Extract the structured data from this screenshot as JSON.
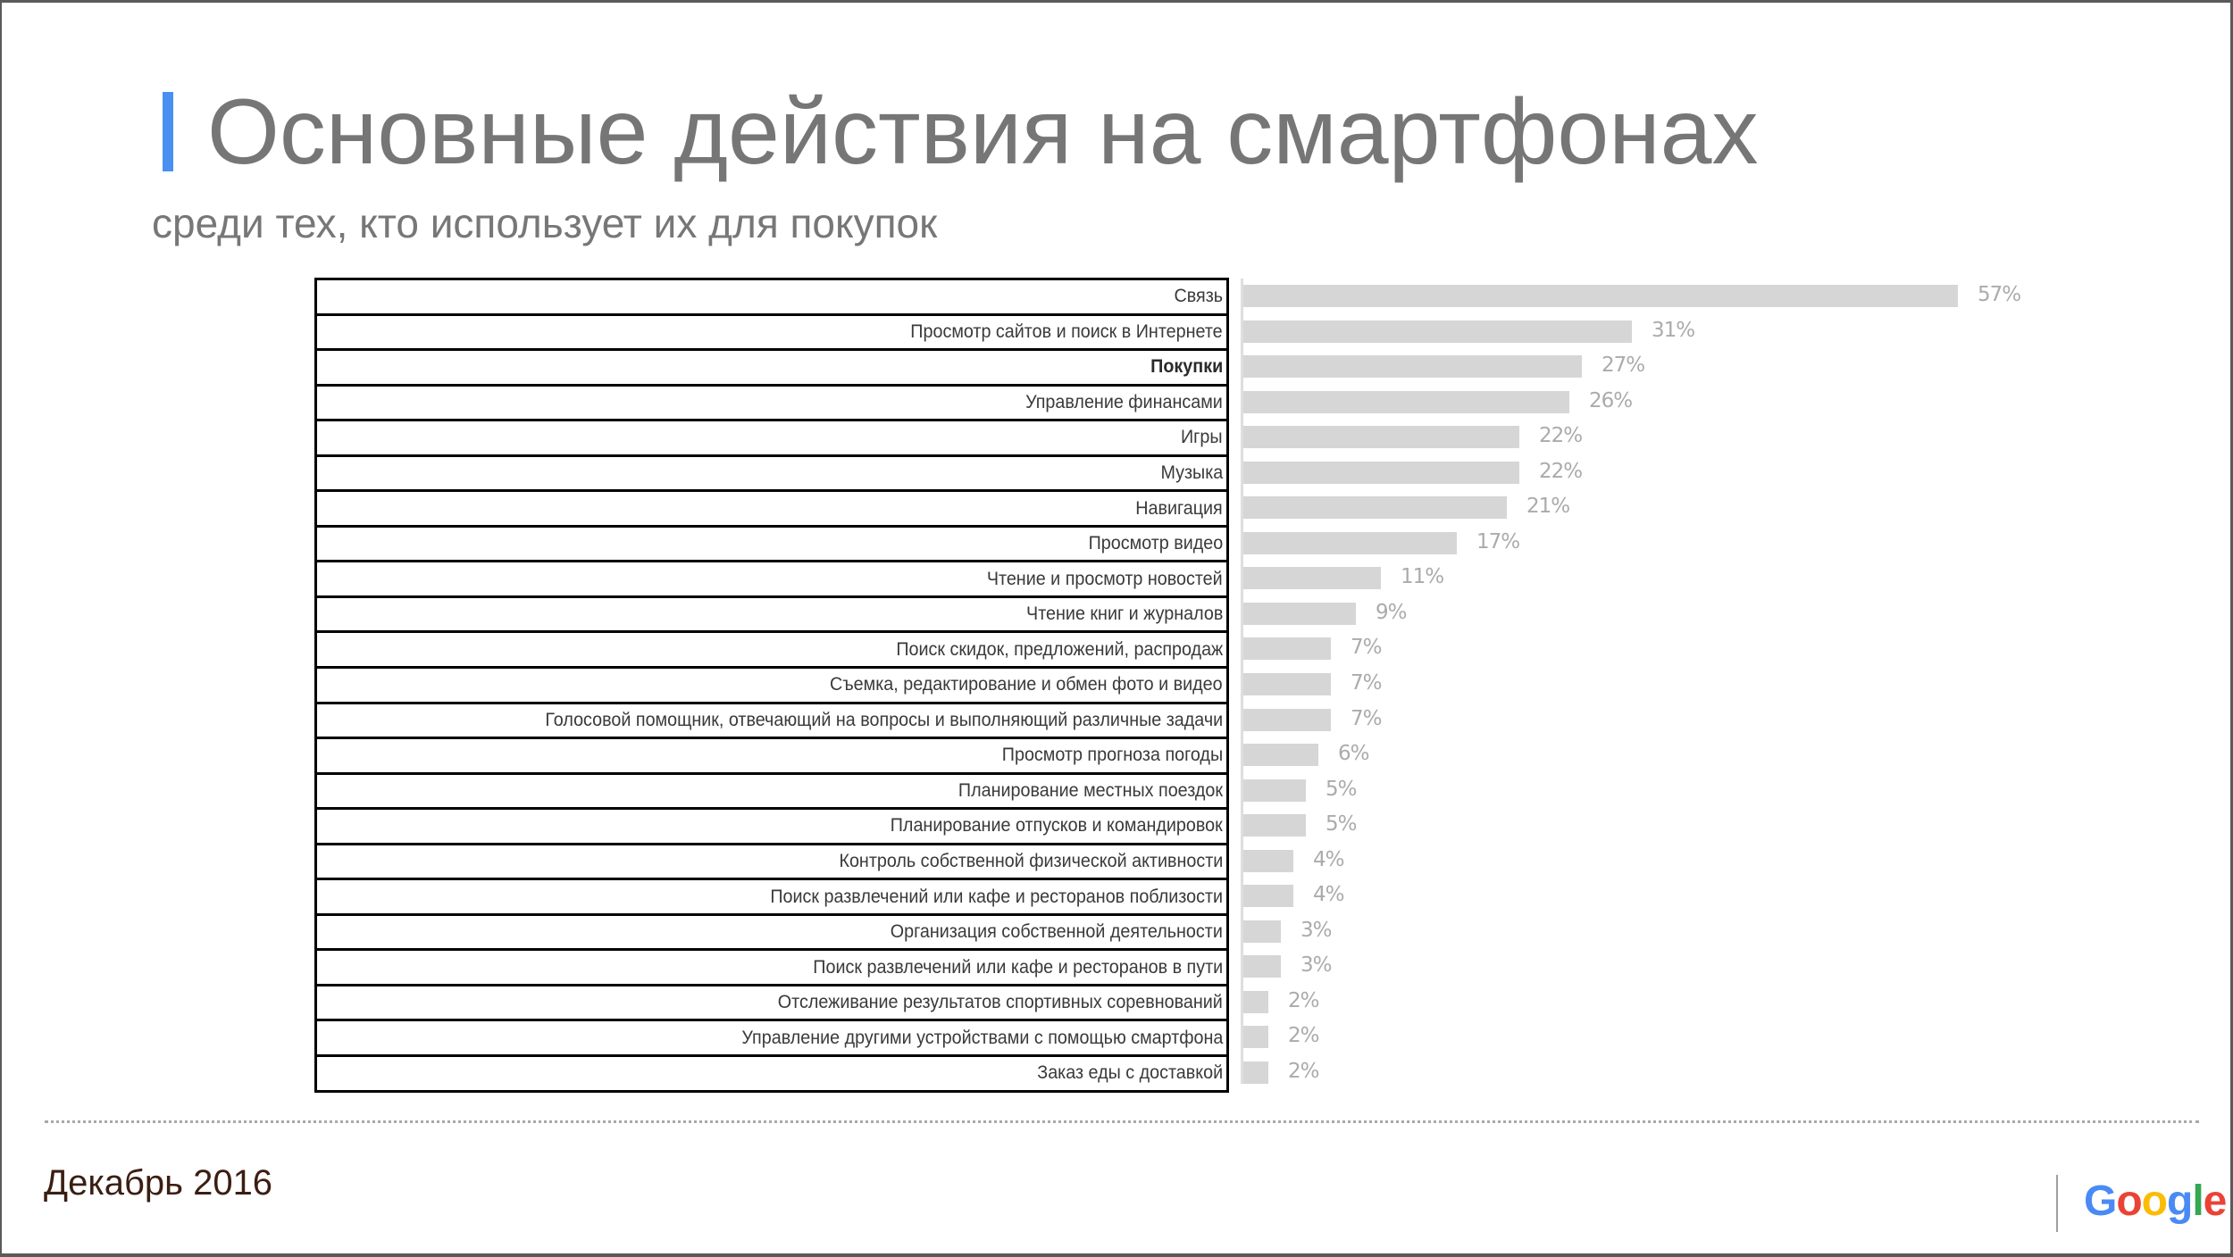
{
  "slide": {
    "title": "Основные действия на смартфонах",
    "subtitle": "среди тех, кто использует их для покупок",
    "accent_color": "#4a90f0",
    "footer_date": "Декабрь 2016",
    "logo": {
      "letters": [
        {
          "char": "G",
          "color": "#4a8af4"
        },
        {
          "char": "o",
          "color": "#ea4335"
        },
        {
          "char": "o",
          "color": "#fbbc05"
        },
        {
          "char": "g",
          "color": "#4a8af4"
        },
        {
          "char": "l",
          "color": "#34a853"
        },
        {
          "char": "e",
          "color": "#ea4335"
        }
      ]
    }
  },
  "chart_data": {
    "type": "bar",
    "orientation": "horizontal",
    "title": "Основные действия на смартфонах",
    "subtitle": "среди тех, кто использует их для покупок",
    "xlabel": "",
    "ylabel": "",
    "value_format": "percent",
    "grid": false,
    "legend": null,
    "highlighted_category": "Покупки",
    "bar_color": "#d6d6d6",
    "categories": [
      "Связь",
      "Просмотр сайтов и поиск в Интернете",
      "Покупки",
      "Управление финансами",
      "Игры",
      "Музыка",
      "Навигация",
      "Просмотр видео",
      "Чтение и просмотр новостей",
      "Чтение книг и журналов",
      "Поиск скидок, предложений, распродаж",
      "Съемка, редактирование и обмен фото и видео",
      "Голосовой помощник, отвечающий на вопросы и выполняющий различные задачи",
      "Просмотр прогноза погоды",
      "Планирование местных поездок",
      "Планирование отпусков и командировок",
      "Контроль собственной физической активности",
      "Поиск развлечений или кафе и ресторанов поблизости",
      "Организация собственной деятельности",
      "Поиск развлечений или кафе и ресторанов в пути",
      "Отслеживание результатов спортивных соревнований",
      "Управление другими устройствами с помощью смартфона",
      "Заказ еды с доставкой"
    ],
    "values": [
      57,
      31,
      27,
      26,
      22,
      22,
      21,
      17,
      11,
      9,
      7,
      7,
      7,
      6,
      5,
      5,
      4,
      4,
      3,
      3,
      2,
      2,
      2
    ],
    "value_labels": [
      "57%",
      "31%",
      "27%",
      "26%",
      "22%",
      "22%",
      "21%",
      "17%",
      "11%",
      "9%",
      "7%",
      "7%",
      "7%",
      "6%",
      "5%",
      "5%",
      "4%",
      "4%",
      "3%",
      "3%",
      "2%",
      "2%",
      "2%"
    ],
    "xlim": [
      0,
      60
    ]
  }
}
